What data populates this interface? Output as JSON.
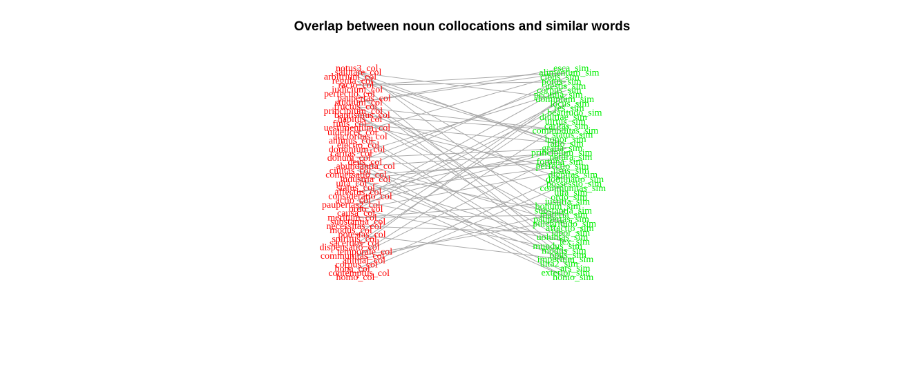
{
  "title": "Overlap between noun collocations and similar words",
  "colors": {
    "collocation_node": "#ff0000",
    "similar_node": "#00ee00",
    "edge": "#a9a9a9",
    "title": "#000000"
  },
  "collocation_nodes": [
    "notus3_col",
    "salutare_col",
    "arbitrium_col",
    "regula_col",
    "racio_col",
    "iudicium_col",
    "perfectio_col",
    "paupertas_col",
    "studium_col",
    "fructus_col",
    "principium_col",
    "baptismus_col",
    "habitus_col",
    "finis_col",
    "uestimentum_col",
    "uidelicet_col",
    "auctoritas_col",
    "animus_col",
    "electio_col",
    "dominium_col",
    "caritas_col",
    "donum_col",
    "deus_col",
    "abundantia_col",
    "ciuitas_col",
    "conuersatio_col",
    "industria_col",
    "uita_col",
    "status_col",
    "affectus_col",
    "consideratio_col",
    "actio_col",
    "paupertas2_col",
    "ordo_col",
    "causa_col",
    "meritum_col",
    "substantia_col",
    "necessitas_col",
    "modus_col",
    "potestas_col",
    "spiritus_col",
    "sacerdos_col",
    "dispensatio_col",
    "temporale_col",
    "communitas_col",
    "animal_col",
    "corpus_col",
    "bona_col",
    "contemptus_col",
    "homo_col"
  ],
  "similar_nodes": [
    "esca_sim",
    "alimentum_sim",
    "cibus_sim",
    "potus_sim",
    "uestis_sim",
    "corpus_sim",
    "pecunia_sim",
    "dominium_sim",
    "locus_sim",
    "res_sim",
    "beatitudo_sim",
    "diuitiae_sim",
    "uirtus_sim",
    "caritas_sim",
    "commoditas_sim",
    "status_sim",
    "honor_sim",
    "ratio_sim",
    "gratia_sim",
    "principium_sim",
    "natura_sim",
    "fortuna_sim",
    "perfectio_sim",
    "usus_sim",
    "dignitas_sim",
    "dominatio_sim",
    "possessio_sim",
    "communitas_sim",
    "uita_sim",
    "ordo_sim",
    "iustitia_sim",
    "bonum_sim",
    "substantia_sim",
    "materia_sim",
    "paupertas_sim",
    "pulchritudo_sim",
    "affectio_sim",
    "labor_sim",
    "uoluntas_sim",
    "lex_sim",
    "mundus_sim",
    "modus_sim",
    "opus_sim",
    "imperium_sim",
    "uita2_sim",
    "ars_sim",
    "exterior_sim",
    "homo_sim"
  ]
}
